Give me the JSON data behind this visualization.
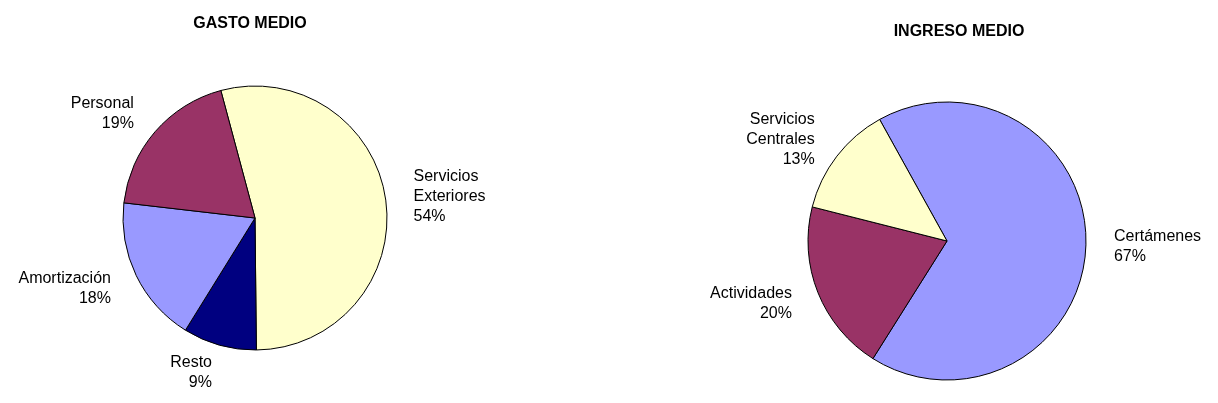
{
  "chart_data": [
    {
      "type": "pie",
      "title": "GASTO MEDIO",
      "categories": [
        "Servicios Exteriores",
        "Resto",
        "Amortización",
        "Personal"
      ],
      "values": [
        54,
        9,
        18,
        19
      ],
      "value_labels": [
        "54%",
        "9%",
        "18%",
        "19%"
      ],
      "colors": [
        "#ffffcc",
        "#000080",
        "#9999ff",
        "#993366"
      ],
      "legend": false
    },
    {
      "type": "pie",
      "title": "INGRESO MEDIO",
      "categories": [
        "Certámenes",
        "Actividades",
        "Servicios Centrales"
      ],
      "values": [
        67,
        20,
        13
      ],
      "value_labels": [
        "67%",
        "20%",
        "13%"
      ],
      "colors": [
        "#9999ff",
        "#993366",
        "#ffffcc"
      ],
      "legend": false
    }
  ]
}
